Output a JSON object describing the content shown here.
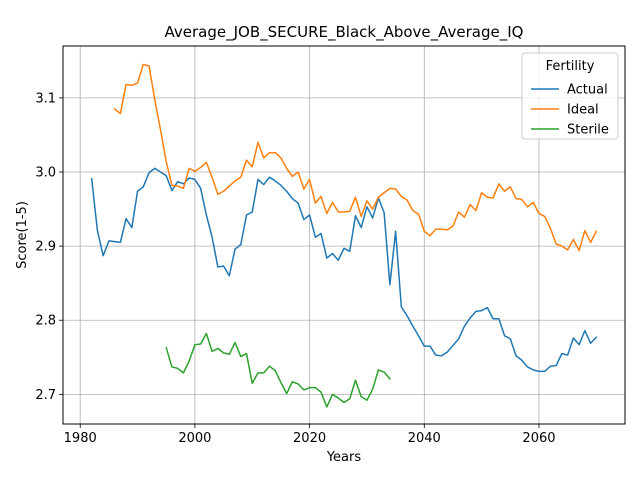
{
  "chart_data": {
    "type": "line",
    "title": "Average_JOB_SECURE_Black_Above_Average_IQ",
    "xlabel": "Years",
    "ylabel": "Score(1-5)",
    "xlim": [
      1977,
      2075
    ],
    "ylim": [
      2.66,
      3.17
    ],
    "x_ticks": [
      1980,
      2000,
      2020,
      2040,
      2060
    ],
    "y_ticks": [
      2.7,
      2.8,
      2.9,
      3.0,
      3.1
    ],
    "x_tick_labels": [
      "1980",
      "2000",
      "2020",
      "2040",
      "2060"
    ],
    "y_tick_labels": [
      "2.7",
      "2.8",
      "2.9",
      "3.0",
      "3.1"
    ],
    "grid": true,
    "legend": {
      "title": "Fertility",
      "position": "top-right"
    },
    "series": [
      {
        "name": "Actual",
        "color": "#1f77b4",
        "x": [
          1982,
          1983,
          1984,
          1985,
          1986,
          1987,
          1988,
          1989,
          1990,
          1991,
          1992,
          1993,
          1994,
          1995,
          1996,
          1997,
          1998,
          1999,
          2000,
          2001,
          2002,
          2003,
          2004,
          2005,
          2006,
          2007,
          2008,
          2009,
          2010,
          2011,
          2012,
          2013,
          2014,
          2015,
          2016,
          2017,
          2018,
          2019,
          2020,
          2021,
          2022,
          2023,
          2024,
          2025,
          2026,
          2027,
          2028,
          2029,
          2030,
          2031,
          2032,
          2033,
          2034,
          2035,
          2036,
          2037,
          2038,
          2039,
          2040,
          2041,
          2042,
          2043,
          2044,
          2045,
          2046,
          2047,
          2048,
          2049,
          2050,
          2051,
          2052,
          2053,
          2054,
          2055,
          2056,
          2057,
          2058,
          2059,
          2060,
          2061,
          2062,
          2063,
          2064,
          2065,
          2066,
          2067,
          2068,
          2069,
          2070
        ],
        "values": [
          2.991,
          2.921,
          2.887,
          2.907,
          2.906,
          2.905,
          2.937,
          2.925,
          2.974,
          2.98,
          2.999,
          3.005,
          3.0,
          2.995,
          2.975,
          2.987,
          2.984,
          2.992,
          2.99,
          2.978,
          2.942,
          2.912,
          2.872,
          2.873,
          2.86,
          2.896,
          2.902,
          2.942,
          2.946,
          2.99,
          2.983,
          2.993,
          2.988,
          2.982,
          2.974,
          2.964,
          2.958,
          2.936,
          2.942,
          2.912,
          2.917,
          2.884,
          2.89,
          2.881,
          2.897,
          2.893,
          2.941,
          2.925,
          2.953,
          2.938,
          2.965,
          2.945,
          2.848,
          2.92,
          2.818,
          2.806,
          2.792,
          2.779,
          2.765,
          2.765,
          2.753,
          2.752,
          2.757,
          2.766,
          2.775,
          2.792,
          2.803,
          2.812,
          2.813,
          2.817,
          2.802,
          2.802,
          2.779,
          2.775,
          2.752,
          2.746,
          2.737,
          2.733,
          2.731,
          2.731,
          2.738,
          2.739,
          2.755,
          2.753,
          2.776,
          2.767,
          2.786,
          2.769,
          2.777
        ]
      },
      {
        "name": "Ideal",
        "color": "#ff7f0e",
        "x": [
          1986,
          1987,
          1988,
          1989,
          1990,
          1991,
          1992,
          1993,
          1994,
          1995,
          1996,
          1997,
          1998,
          1999,
          2000,
          2001,
          2002,
          2003,
          2004,
          2005,
          2006,
          2007,
          2008,
          2009,
          2010,
          2011,
          2012,
          2013,
          2014,
          2015,
          2016,
          2017,
          2018,
          2019,
          2020,
          2021,
          2022,
          2023,
          2024,
          2025,
          2026,
          2027,
          2028,
          2029,
          2030,
          2031,
          2032,
          2033,
          2034,
          2035,
          2036,
          2037,
          2038,
          2039,
          2040,
          2041,
          2042,
          2043,
          2044,
          2045,
          2046,
          2047,
          2048,
          2049,
          2050,
          2051,
          2052,
          2053,
          2054,
          2055,
          2056,
          2057,
          2058,
          2059,
          2060,
          2061,
          2062,
          2063,
          2064,
          2065,
          2066,
          2067,
          2068,
          2069,
          2070
        ],
        "values": [
          3.085,
          3.079,
          3.118,
          3.117,
          3.12,
          3.145,
          3.143,
          3.098,
          3.057,
          3.014,
          2.982,
          2.981,
          2.978,
          3.005,
          3.001,
          3.006,
          3.013,
          2.993,
          2.97,
          2.974,
          2.981,
          2.988,
          2.993,
          3.016,
          3.007,
          3.04,
          3.019,
          3.026,
          3.026,
          3.019,
          3.005,
          2.994,
          3.0,
          2.977,
          2.99,
          2.958,
          2.967,
          2.944,
          2.959,
          2.946,
          2.946,
          2.947,
          2.966,
          2.94,
          2.961,
          2.95,
          2.966,
          2.972,
          2.978,
          2.977,
          2.967,
          2.962,
          2.948,
          2.943,
          2.92,
          2.914,
          2.923,
          2.923,
          2.922,
          2.927,
          2.946,
          2.939,
          2.956,
          2.948,
          2.972,
          2.966,
          2.965,
          2.984,
          2.974,
          2.98,
          2.964,
          2.963,
          2.953,
          2.959,
          2.944,
          2.94,
          2.924,
          2.903,
          2.9,
          2.895,
          2.909,
          2.894,
          2.921,
          2.905,
          2.92
        ]
      },
      {
        "name": "Sterile",
        "color": "#2ca02c",
        "x": [
          1995,
          1996,
          1997,
          1998,
          1999,
          2000,
          2001,
          2002,
          2003,
          2004,
          2005,
          2006,
          2007,
          2008,
          2009,
          2010,
          2011,
          2012,
          2013,
          2014,
          2015,
          2016,
          2017,
          2018,
          2019,
          2020,
          2021,
          2022,
          2023,
          2024,
          2025,
          2026,
          2027,
          2028,
          2029,
          2030,
          2031,
          2032,
          2033,
          2034
        ],
        "values": [
          2.763,
          2.737,
          2.735,
          2.729,
          2.745,
          2.767,
          2.768,
          2.782,
          2.758,
          2.762,
          2.756,
          2.754,
          2.77,
          2.751,
          2.755,
          2.715,
          2.729,
          2.729,
          2.738,
          2.732,
          2.716,
          2.701,
          2.717,
          2.714,
          2.706,
          2.709,
          2.709,
          2.703,
          2.683,
          2.7,
          2.695,
          2.689,
          2.694,
          2.719,
          2.697,
          2.692,
          2.707,
          2.733,
          2.73,
          2.721
        ]
      }
    ]
  }
}
